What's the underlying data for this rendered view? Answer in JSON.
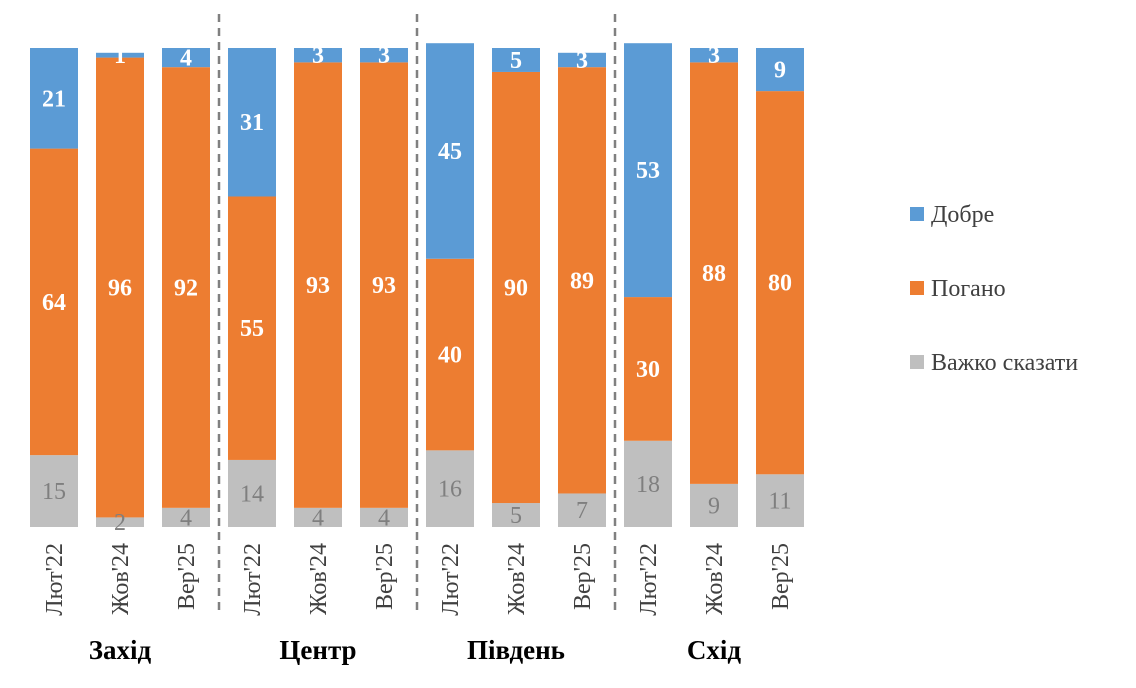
{
  "chart_data": {
    "type": "bar",
    "stacked": true,
    "groups": [
      {
        "name": "Захід",
        "categories": [
          "Лют'22",
          "Жов'24",
          "Вер'25"
        ]
      },
      {
        "name": "Центр",
        "categories": [
          "Лют'22",
          "Жов'24",
          "Вер'25"
        ]
      },
      {
        "name": "Південь",
        "categories": [
          "Лют'22",
          "Жов'24",
          "Вер'25"
        ]
      },
      {
        "name": "Схід",
        "categories": [
          "Лют'22",
          "Жов'24",
          "Вер'25"
        ]
      }
    ],
    "series": [
      {
        "name": "Добре",
        "color": "#5b9bd5",
        "values": [
          21,
          1,
          4,
          31,
          3,
          3,
          45,
          5,
          3,
          53,
          3,
          9
        ]
      },
      {
        "name": "Погано",
        "color": "#ed7d31",
        "values": [
          64,
          96,
          92,
          55,
          93,
          93,
          40,
          90,
          89,
          30,
          88,
          80
        ]
      },
      {
        "name": "Важко сказати",
        "color": "#bfbfbf",
        "values": [
          15,
          2,
          4,
          14,
          4,
          4,
          16,
          5,
          7,
          18,
          9,
          11
        ]
      }
    ],
    "ylim": [
      0,
      100
    ],
    "legend": "right",
    "grid": false
  }
}
